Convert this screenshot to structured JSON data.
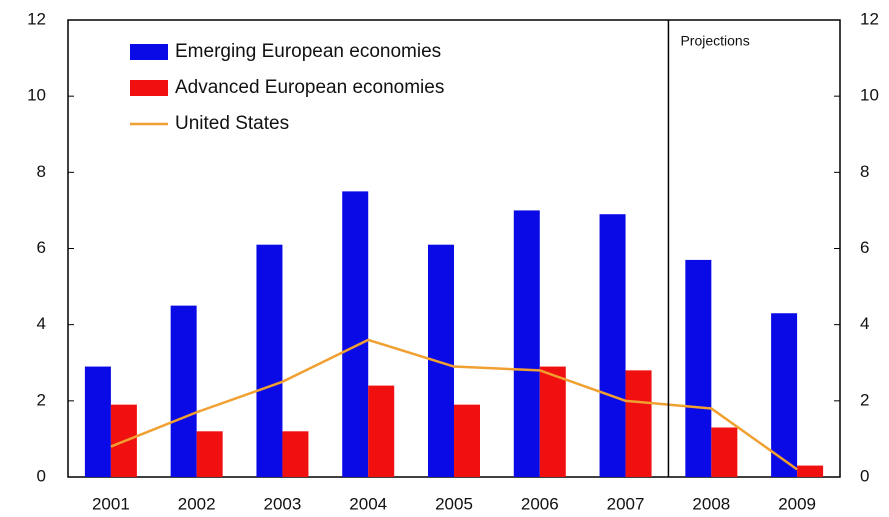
{
  "chart_data": {
    "type": "bar",
    "categories": [
      "2001",
      "2002",
      "2003",
      "2004",
      "2005",
      "2006",
      "2007",
      "2008",
      "2009"
    ],
    "series": [
      {
        "name": "Emerging European economies",
        "color": "#0a0ae6",
        "type": "bar",
        "values": [
          2.9,
          4.5,
          6.1,
          7.5,
          6.1,
          7.0,
          6.9,
          5.7,
          4.3
        ]
      },
      {
        "name": "Advanced European economies",
        "color": "#f01010",
        "type": "bar",
        "values": [
          1.9,
          1.2,
          1.2,
          2.4,
          1.9,
          2.9,
          2.8,
          1.3,
          0.3
        ]
      },
      {
        "name": "United States",
        "color": "#f0a030",
        "type": "line",
        "values": [
          0.8,
          1.7,
          2.5,
          3.6,
          2.9,
          2.8,
          2.0,
          1.8,
          0.2
        ]
      }
    ],
    "annotation": "Projections",
    "ylim": [
      0,
      12
    ],
    "yticks": [
      0,
      2,
      4,
      6,
      8,
      10,
      12
    ],
    "y2lim": [
      0,
      12
    ],
    "y2ticks": [
      0,
      2,
      4,
      6,
      8,
      10,
      12
    ],
    "legend": "upper left"
  }
}
